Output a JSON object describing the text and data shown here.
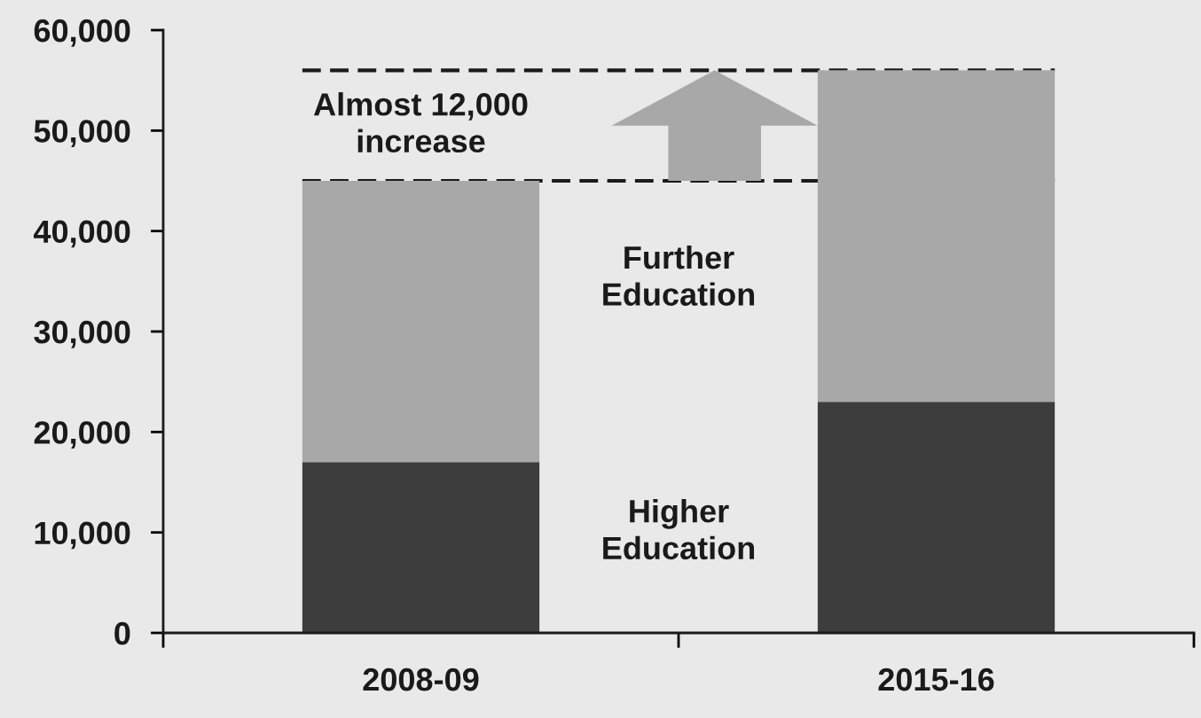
{
  "chart_data": {
    "type": "bar",
    "stacked": true,
    "categories": [
      "2008-09",
      "2015-16"
    ],
    "series": [
      {
        "name": "Higher Education",
        "color": "#3d3d3d",
        "values": [
          17000,
          23000
        ]
      },
      {
        "name": "Further Education",
        "color": "#a8a8a8",
        "values": [
          28000,
          33000
        ]
      }
    ],
    "ylim": [
      0,
      60000
    ],
    "yticks": [
      0,
      {
        "value": 10000,
        "label": "10,000"
      },
      {
        "value": 20000,
        "label": "20,000"
      },
      {
        "value": 30000,
        "label": "30,000"
      },
      {
        "value": 40000,
        "label": "40,000"
      },
      {
        "value": 50000,
        "label": "50,000"
      },
      {
        "value": 60000,
        "label": "60,000"
      }
    ],
    "ref_lines": [
      {
        "axis": "y",
        "value": 45000,
        "line_style": "dashed",
        "color": "#1a1a1a"
      },
      {
        "axis": "y",
        "value": 56000,
        "line_style": "dashed",
        "color": "#1a1a1a"
      }
    ],
    "annotations": [
      "Almost 12,000 increase"
    ]
  }
}
